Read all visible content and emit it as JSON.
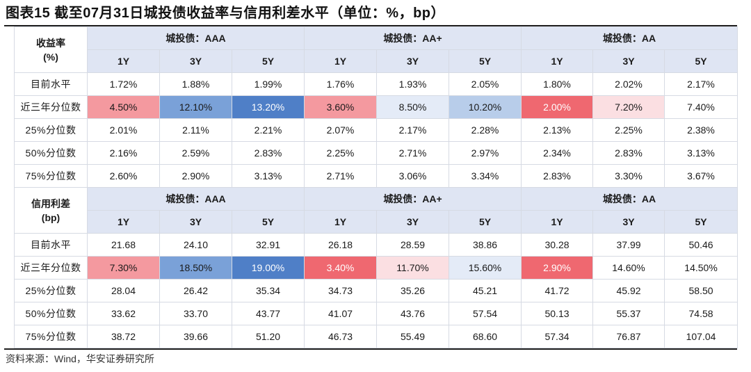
{
  "title": "图表15 截至07月31日城投债收益率与信用利差水平（单位：%，bp）",
  "source": "资料来源：Wind，华安证券研究所",
  "heatmap_colors": {
    "red_strong": "#ef6870",
    "red_medium": "#f4999f",
    "red_light": "#fbdfe2",
    "blue_strong": "#4f7fc7",
    "blue_medium": "#7aa1d8",
    "blue_light": "#b8cdea",
    "blue_pale": "#e4ebf7",
    "header_fill": "#dfe5f3"
  },
  "tables": [
    {
      "corner": [
        "收益率",
        "(%)"
      ],
      "groups": [
        "城投债：AAA",
        "城投债：AA+",
        "城投债：AA"
      ],
      "tenors": [
        "1Y",
        "3Y",
        "5Y",
        "1Y",
        "3Y",
        "5Y",
        "1Y",
        "3Y",
        "5Y"
      ],
      "rows": [
        {
          "label": "目前水平",
          "values": [
            "1.72%",
            "1.88%",
            "1.99%",
            "1.76%",
            "1.93%",
            "2.05%",
            "1.80%",
            "2.02%",
            "2.17%"
          ],
          "shades": [
            "",
            "",
            "",
            "",
            "",
            "",
            "",
            "",
            ""
          ]
        },
        {
          "label": "近三年分位数",
          "values": [
            "4.50%",
            "12.10%",
            "13.20%",
            "3.60%",
            "8.50%",
            "10.20%",
            "2.00%",
            "7.20%",
            "7.40%"
          ],
          "shades": [
            "red_medium",
            "blue_medium",
            "blue_strong",
            "red_medium",
            "blue_pale",
            "blue_light",
            "red_strong",
            "red_light",
            ""
          ]
        },
        {
          "label": "25%分位数",
          "values": [
            "2.01%",
            "2.11%",
            "2.21%",
            "2.07%",
            "2.17%",
            "2.28%",
            "2.13%",
            "2.25%",
            "2.38%"
          ],
          "shades": [
            "",
            "",
            "",
            "",
            "",
            "",
            "",
            "",
            ""
          ]
        },
        {
          "label": "50%分位数",
          "values": [
            "2.16%",
            "2.59%",
            "2.83%",
            "2.25%",
            "2.71%",
            "2.97%",
            "2.34%",
            "2.83%",
            "3.13%"
          ],
          "shades": [
            "",
            "",
            "",
            "",
            "",
            "",
            "",
            "",
            ""
          ]
        },
        {
          "label": "75%分位数",
          "values": [
            "2.60%",
            "2.90%",
            "3.13%",
            "2.71%",
            "3.06%",
            "3.34%",
            "2.83%",
            "3.30%",
            "3.67%"
          ],
          "shades": [
            "",
            "",
            "",
            "",
            "",
            "",
            "",
            "",
            ""
          ]
        }
      ]
    },
    {
      "corner": [
        "信用利差",
        "(bp)"
      ],
      "groups": [
        "城投债：AAA",
        "城投债：AA+",
        "城投债：AA"
      ],
      "tenors": [
        "1Y",
        "3Y",
        "5Y",
        "1Y",
        "3Y",
        "5Y",
        "1Y",
        "3Y",
        "5Y"
      ],
      "rows": [
        {
          "label": "目前水平",
          "values": [
            "21.68",
            "24.10",
            "32.91",
            "26.18",
            "28.59",
            "38.86",
            "30.28",
            "37.99",
            "50.46"
          ],
          "shades": [
            "",
            "",
            "",
            "",
            "",
            "",
            "",
            "",
            ""
          ]
        },
        {
          "label": "近三年分位数",
          "values": [
            "7.30%",
            "18.50%",
            "19.00%",
            "3.40%",
            "11.70%",
            "15.60%",
            "2.90%",
            "14.60%",
            "14.50%"
          ],
          "shades": [
            "red_medium",
            "blue_medium",
            "blue_strong",
            "red_strong",
            "red_light",
            "blue_pale",
            "red_strong",
            "",
            ""
          ]
        },
        {
          "label": "25%分位数",
          "values": [
            "28.04",
            "26.42",
            "35.34",
            "34.73",
            "35.26",
            "45.21",
            "41.72",
            "45.92",
            "58.50"
          ],
          "shades": [
            "",
            "",
            "",
            "",
            "",
            "",
            "",
            "",
            ""
          ]
        },
        {
          "label": "50%分位数",
          "values": [
            "33.62",
            "33.70",
            "43.77",
            "41.07",
            "43.76",
            "57.54",
            "50.13",
            "55.37",
            "74.58"
          ],
          "shades": [
            "",
            "",
            "",
            "",
            "",
            "",
            "",
            "",
            ""
          ]
        },
        {
          "label": "75%分位数",
          "values": [
            "38.72",
            "39.66",
            "51.20",
            "46.73",
            "55.49",
            "68.60",
            "57.34",
            "76.87",
            "107.04"
          ],
          "shades": [
            "",
            "",
            "",
            "",
            "",
            "",
            "",
            "",
            ""
          ]
        }
      ]
    }
  ]
}
